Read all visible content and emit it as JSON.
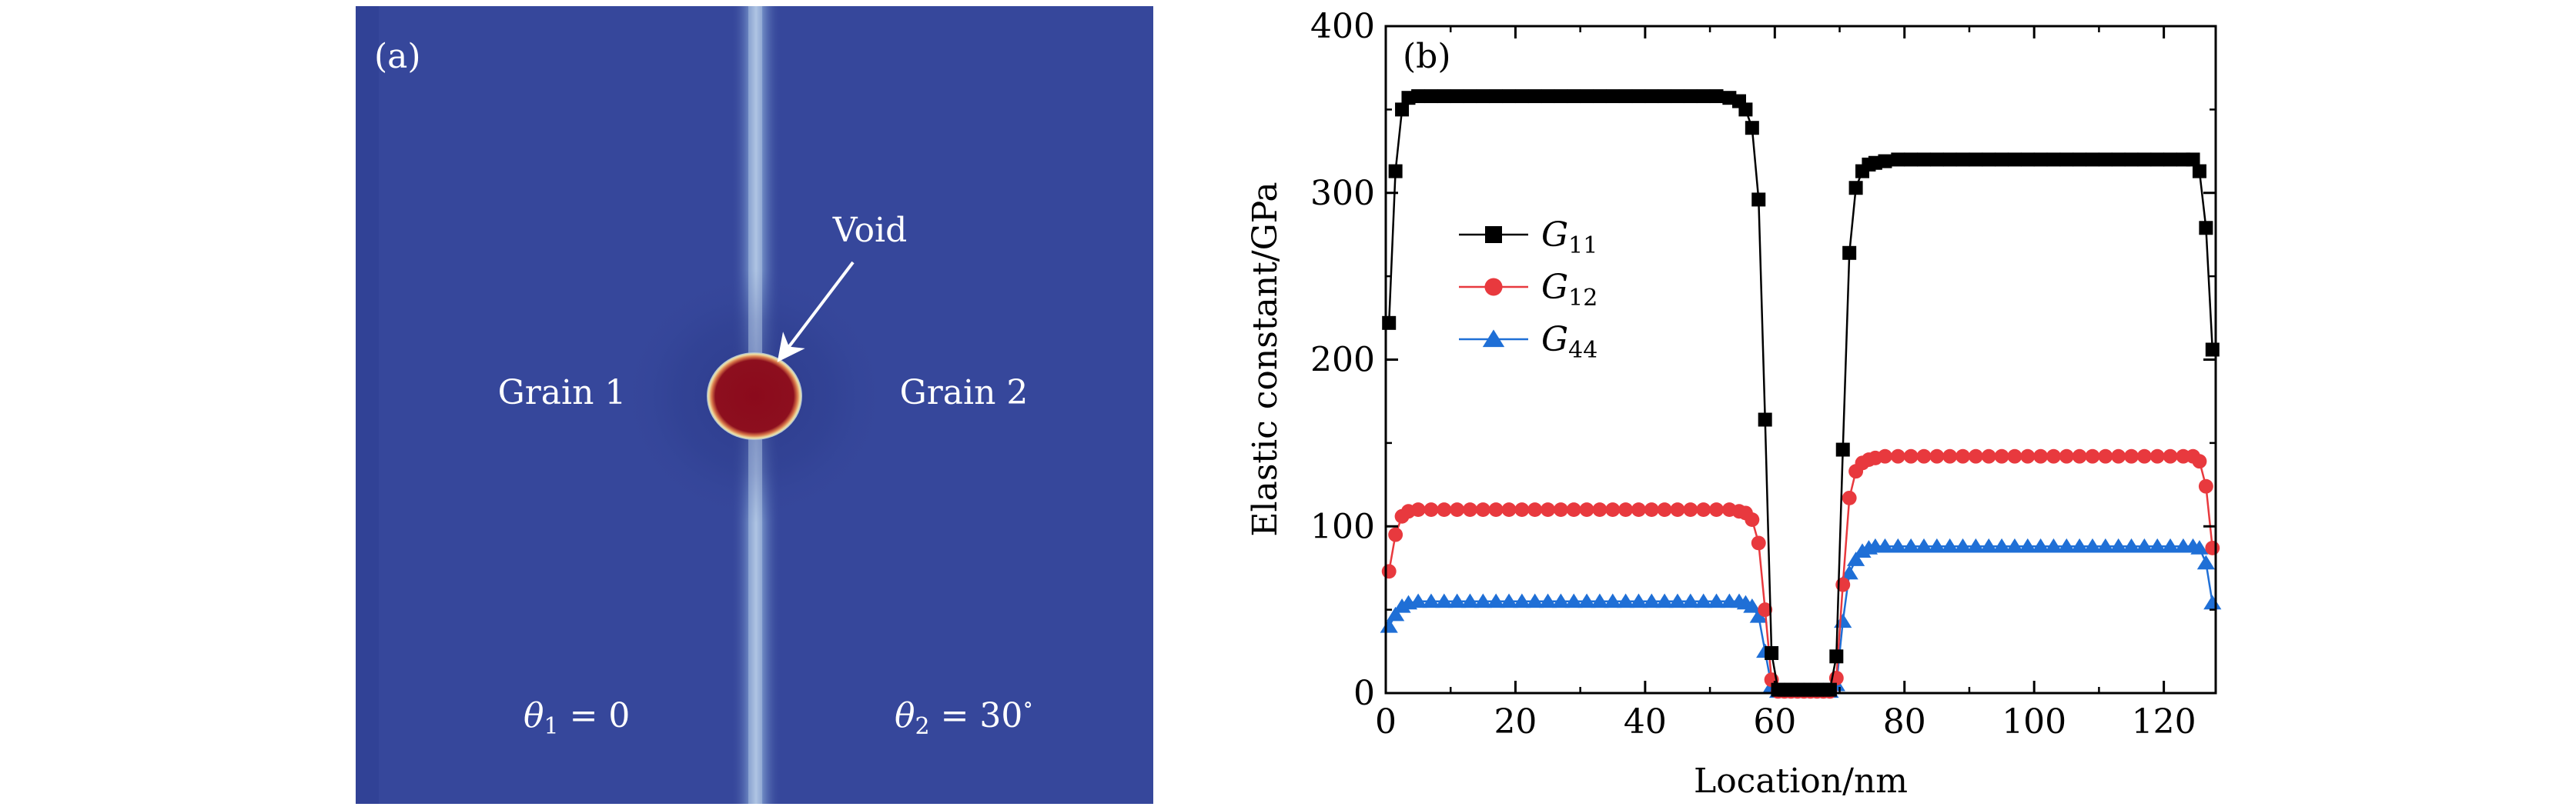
{
  "panel_a": {
    "label": "(a)",
    "void_label": "Void",
    "grain1_label": "Grain 1",
    "grain2_label": "Grain 2",
    "theta1": {
      "symbol": "θ",
      "sub": "1",
      "rest": " = 0"
    },
    "theta2": {
      "symbol": "θ",
      "sub": "2",
      "rest": " = 30",
      "sup": "∘"
    },
    "colors": {
      "background": "#36479b",
      "boundary": "#a9bfe0",
      "void_core": "#8b0a1c",
      "void_rim": "#efe2a6"
    }
  },
  "chart_data": {
    "type": "line",
    "panel_label": "(b)",
    "title": "",
    "xlabel": "Location/nm",
    "ylabel": "Elastic constant/GPa",
    "xlim": [
      0,
      128
    ],
    "ylim": [
      0,
      400
    ],
    "xticks": [
      0,
      20,
      40,
      60,
      80,
      100,
      120
    ],
    "yticks": [
      0,
      100,
      200,
      300,
      400
    ],
    "grid": false,
    "legend_position": "upper-left",
    "x": [
      0.5,
      1.5,
      2.5,
      3.5,
      5,
      7,
      9,
      11,
      13,
      15,
      17,
      19,
      21,
      23,
      25,
      27,
      29,
      31,
      33,
      35,
      37,
      39,
      41,
      43,
      45,
      47,
      49,
      51,
      53,
      54.5,
      55.5,
      56.5,
      57.5,
      58.5,
      59.5,
      60.5,
      61.5,
      62.5,
      63.5,
      64.5,
      65.5,
      66.5,
      67.5,
      68.5,
      69.5,
      70.5,
      71.5,
      72.5,
      73.5,
      74.5,
      75.5,
      77,
      79,
      81,
      83,
      85,
      87,
      89,
      91,
      93,
      95,
      97,
      99,
      101,
      103,
      105,
      107,
      109,
      111,
      113,
      115,
      117,
      119,
      121,
      123,
      124.5,
      125.5,
      126.5,
      127.5
    ],
    "series": [
      {
        "name": "G11",
        "label_main": "G",
        "label_sub": "11",
        "color": "#000000",
        "marker": "square",
        "values": [
          222,
          313,
          350,
          357,
          358,
          358,
          358,
          358,
          358,
          358,
          358,
          358,
          358,
          358,
          358,
          358,
          358,
          358,
          358,
          358,
          358,
          358,
          358,
          358,
          358,
          358,
          358,
          358,
          357,
          355,
          350,
          339,
          296,
          164,
          24,
          2,
          2,
          2,
          2,
          2,
          2,
          2,
          2,
          2,
          22,
          146,
          264,
          303,
          313,
          317,
          318,
          319,
          320,
          320,
          320,
          320,
          320,
          320,
          320,
          320,
          320,
          320,
          320,
          320,
          320,
          320,
          320,
          320,
          320,
          320,
          320,
          320,
          320,
          320,
          320,
          320,
          313,
          279,
          206
        ]
      },
      {
        "name": "G12",
        "label_main": "G",
        "label_sub": "12",
        "color": "#e8393e",
        "marker": "circle",
        "values": [
          73,
          95,
          106,
          109,
          110,
          110,
          110,
          110,
          110,
          110,
          110,
          110,
          110,
          110,
          110,
          110,
          110,
          110,
          110,
          110,
          110,
          110,
          110,
          110,
          110,
          110,
          110,
          110,
          110,
          109,
          108,
          104,
          90,
          50,
          8,
          1,
          1,
          1,
          1,
          1,
          1,
          1,
          1,
          1,
          9,
          65,
          117,
          133,
          138,
          140,
          141,
          142,
          142,
          142,
          142,
          142,
          142,
          142,
          142,
          142,
          142,
          142,
          142,
          142,
          142,
          142,
          142,
          142,
          142,
          142,
          142,
          142,
          142,
          142,
          142,
          142,
          139,
          124,
          87
        ]
      },
      {
        "name": "G44",
        "label_main": "G",
        "label_sub": "44",
        "color": "#1f6fd6",
        "marker": "triangle",
        "values": [
          40,
          47,
          52,
          54,
          55,
          55,
          55,
          55,
          55,
          55,
          55,
          55,
          55,
          55,
          55,
          55,
          55,
          55,
          55,
          55,
          55,
          55,
          55,
          55,
          55,
          55,
          55,
          55,
          55,
          55,
          54,
          52,
          46,
          25,
          4,
          1,
          1,
          1,
          1,
          1,
          1,
          1,
          1,
          1,
          5,
          43,
          72,
          80,
          85,
          87,
          88,
          88,
          88,
          88,
          88,
          88,
          88,
          88,
          88,
          88,
          88,
          88,
          88,
          88,
          88,
          88,
          88,
          88,
          88,
          88,
          88,
          88,
          88,
          88,
          88,
          88,
          87,
          78,
          54
        ]
      }
    ]
  }
}
